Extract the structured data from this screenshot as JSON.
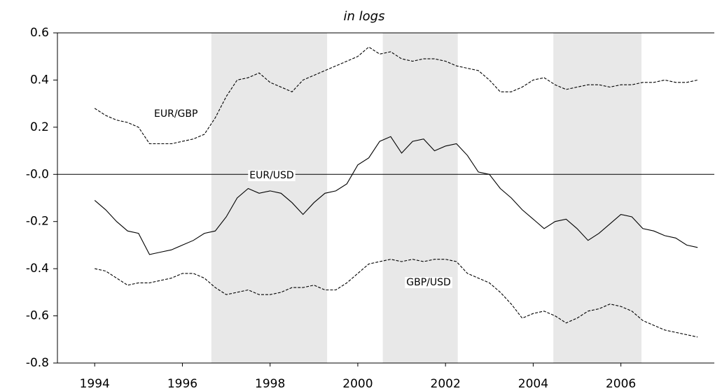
{
  "chart_data": {
    "type": "line",
    "title": "in logs",
    "x": [
      1994,
      1994.25,
      1994.5,
      1994.75,
      1995,
      1995.25,
      1995.5,
      1995.75,
      1996,
      1996.25,
      1996.5,
      1996.75,
      1997,
      1997.25,
      1997.5,
      1997.75,
      1998,
      1998.25,
      1998.5,
      1998.75,
      1999,
      1999.25,
      1999.5,
      1999.75,
      2000,
      2000.25,
      2000.5,
      2000.75,
      2001,
      2001.25,
      2001.5,
      2001.75,
      2002,
      2002.25,
      2002.5,
      2002.75,
      2003,
      2003.25,
      2003.5,
      2003.75,
      2004,
      2004.25,
      2004.5,
      2004.75,
      2005,
      2005.25,
      2005.5,
      2005.75,
      2006,
      2006.25,
      2006.5,
      2006.75,
      2007,
      2007.25,
      2007.5,
      2007.75
    ],
    "series": [
      {
        "name": "EUR/GBP",
        "color": "#000000",
        "style": "dashed",
        "values": [
          0.28,
          0.25,
          0.23,
          0.22,
          0.2,
          0.13,
          0.13,
          0.13,
          0.14,
          0.15,
          0.17,
          0.24,
          0.33,
          0.4,
          0.41,
          0.43,
          0.39,
          0.37,
          0.35,
          0.4,
          0.42,
          0.44,
          0.46,
          0.48,
          0.5,
          0.54,
          0.51,
          0.52,
          0.49,
          0.48,
          0.49,
          0.49,
          0.48,
          0.46,
          0.45,
          0.44,
          0.4,
          0.35,
          0.35,
          0.37,
          0.4,
          0.41,
          0.38,
          0.36,
          0.37,
          0.38,
          0.38,
          0.37,
          0.38,
          0.38,
          0.39,
          0.39,
          0.4,
          0.39,
          0.39,
          0.4
        ]
      },
      {
        "name": "EUR/USD",
        "color": "#000000",
        "style": "solid",
        "values": [
          -0.11,
          -0.15,
          -0.2,
          -0.24,
          -0.25,
          -0.34,
          -0.33,
          -0.32,
          -0.3,
          -0.28,
          -0.25,
          -0.24,
          -0.18,
          -0.1,
          -0.06,
          -0.08,
          -0.07,
          -0.08,
          -0.12,
          -0.17,
          -0.12,
          -0.08,
          -0.07,
          -0.04,
          0.04,
          0.07,
          0.14,
          0.16,
          0.09,
          0.14,
          0.15,
          0.1,
          0.12,
          0.13,
          0.08,
          0.01,
          0.0,
          -0.06,
          -0.1,
          -0.15,
          -0.19,
          -0.23,
          -0.2,
          -0.19,
          -0.23,
          -0.28,
          -0.25,
          -0.21,
          -0.17,
          -0.18,
          -0.23,
          -0.24,
          -0.26,
          -0.27,
          -0.3,
          -0.31
        ]
      },
      {
        "name": "GBP/USD",
        "color": "#000000",
        "style": "dashed",
        "values": [
          -0.4,
          -0.41,
          -0.44,
          -0.47,
          -0.46,
          -0.46,
          -0.45,
          -0.44,
          -0.42,
          -0.42,
          -0.44,
          -0.48,
          -0.51,
          -0.5,
          -0.49,
          -0.51,
          -0.51,
          -0.5,
          -0.48,
          -0.48,
          -0.47,
          -0.49,
          -0.49,
          -0.46,
          -0.42,
          -0.38,
          -0.37,
          -0.36,
          -0.37,
          -0.36,
          -0.37,
          -0.36,
          -0.36,
          -0.37,
          -0.42,
          -0.44,
          -0.46,
          -0.5,
          -0.55,
          -0.61,
          -0.59,
          -0.58,
          -0.6,
          -0.63,
          -0.61,
          -0.58,
          -0.57,
          -0.55,
          -0.56,
          -0.58,
          -0.62,
          -0.64,
          -0.66,
          -0.67,
          -0.68,
          -0.69
        ]
      }
    ],
    "shaded_periods": [
      [
        1996.66,
        1999.3
      ],
      [
        2000.57,
        2002.28
      ],
      [
        2004.46,
        2006.47
      ]
    ],
    "shade_color": "#e8e8e8",
    "reference_line": 0,
    "xlim": [
      1993.15,
      2008.13
    ],
    "xticks": [
      1994,
      1996,
      1998,
      2000,
      2002,
      2004,
      2006
    ],
    "ylim": [
      -0.8,
      0.6
    ],
    "yticks": [
      0.6,
      0.4,
      0.2,
      {
        "value": 0,
        "label": "-0.0"
      },
      -0.2,
      -0.4,
      -0.6,
      -0.8
    ]
  }
}
